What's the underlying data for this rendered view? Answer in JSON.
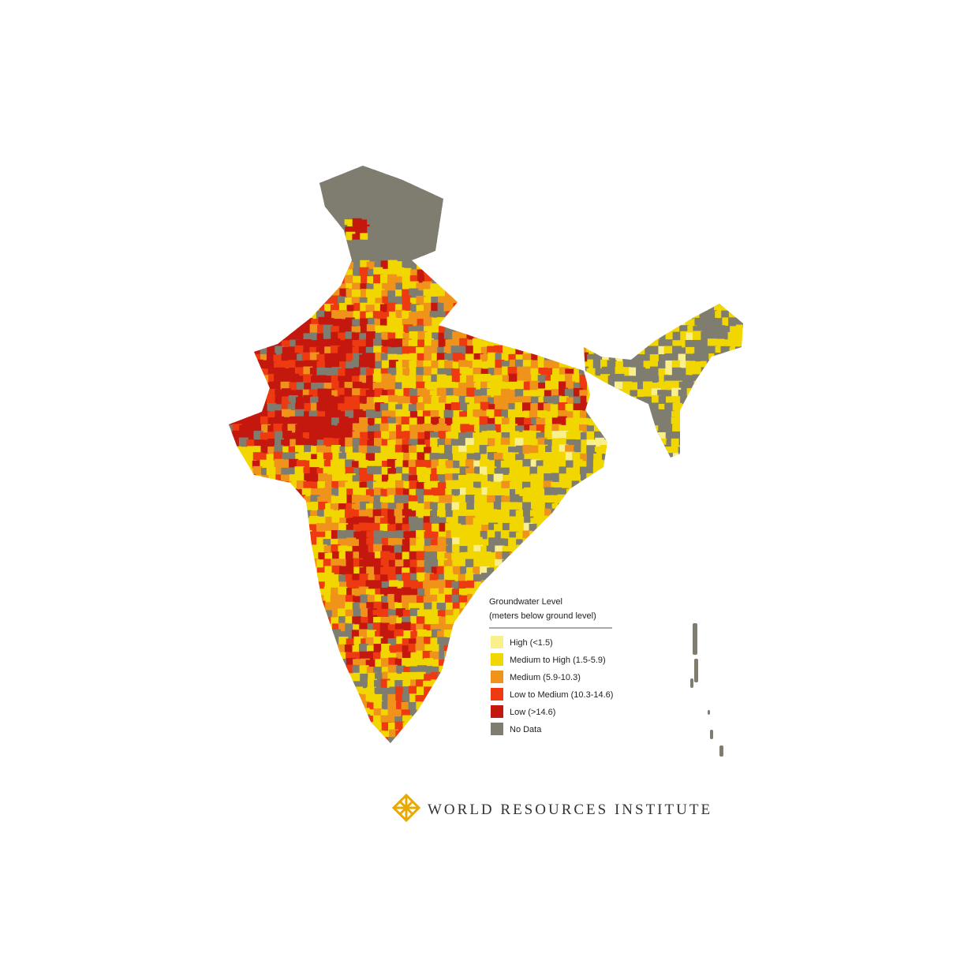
{
  "legend": {
    "title": "Groundwater Level",
    "subtitle": "(meters below ground level)",
    "items": [
      {
        "label": "High (<1.5)",
        "color": "#f9ef8c"
      },
      {
        "label": "Medium to High (1.5-5.9)",
        "color": "#f2d600"
      },
      {
        "label": "Medium (5.9-10.3)",
        "color": "#f0931a"
      },
      {
        "label": "Low to Medium (10.3-14.6)",
        "color": "#ee3a10"
      },
      {
        "label": "Low (>14.6)",
        "color": "#c4180f"
      },
      {
        "label": "No Data",
        "color": "#7f7d6f"
      }
    ]
  },
  "footer": {
    "logo_text": "WORLD RESOURCES INSTITUTE"
  }
}
